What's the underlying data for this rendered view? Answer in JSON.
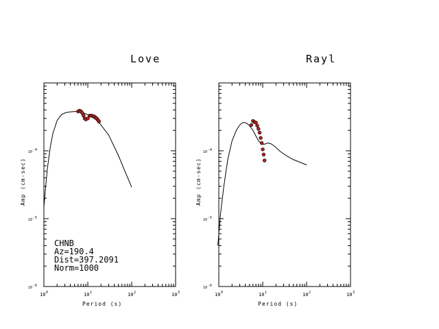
{
  "chart_data": [
    {
      "type": "line",
      "title": "Love",
      "xlabel": "Period (s)",
      "ylabel": "Amp (cm-sec)",
      "xscale": "log",
      "yscale": "log",
      "xlim": [
        1,
        1000
      ],
      "ylim": [
        1e-06,
        0.001
      ],
      "x_tick_labels": [
        {
          "base": "10",
          "exp": "0",
          "value": 1
        },
        {
          "base": "10",
          "exp": "1",
          "value": 10
        },
        {
          "base": "10",
          "exp": "2",
          "value": 100
        },
        {
          "base": "10",
          "exp": "3",
          "value": 1000
        }
      ],
      "y_tick_labels": [
        {
          "base": "10",
          "exp": "-4",
          "value": 0.0001
        },
        {
          "base": "10",
          "exp": "-5",
          "value": 1e-05
        },
        {
          "base": "10",
          "exp": "-6",
          "value": 1e-06
        }
      ],
      "series": [
        {
          "kind": "line",
          "x": [
            1.0,
            1.1,
            1.2,
            1.4,
            1.6,
            2.0,
            2.5,
            3.0,
            3.5,
            4.0,
            5.0,
            6.0,
            7.0,
            8.0,
            10,
            12,
            15,
            20,
            30,
            50,
            70,
            100
          ],
          "y": [
            1.5e-05,
            3e-05,
            5.5e-05,
            0.000115,
            0.00018,
            0.00028,
            0.00034,
            0.00036,
            0.00037,
            0.000375,
            0.00038,
            0.00038,
            0.000375,
            0.00036,
            0.00034,
            0.00032,
            0.00029,
            0.00024,
            0.00017,
            8.5e-05,
            5e-05,
            2.9e-05
          ]
        },
        {
          "kind": "scatter",
          "x": [
            6.0,
            6.5,
            7.0,
            7.5,
            8.0,
            8.5,
            9.0,
            10.0,
            11.0,
            12.0,
            13.0,
            14.0,
            15.0,
            16.0,
            17.0,
            18.0
          ],
          "y": [
            0.00038,
            0.00039,
            0.00038,
            0.00036,
            0.00033,
            0.0003,
            0.00029,
            0.0003,
            0.00033,
            0.00033,
            0.000325,
            0.00032,
            0.00031,
            0.0003,
            0.000285,
            0.00027
          ]
        }
      ],
      "annotations": [
        "CHNB",
        "Az=190.4",
        "Dist=397.2091",
        "Norm=1000"
      ]
    },
    {
      "type": "line",
      "title": "Rayl",
      "xlabel": "Period (s)",
      "ylabel": "Amp (cm-sec)",
      "xscale": "log",
      "yscale": "log",
      "xlim": [
        1,
        1000
      ],
      "ylim": [
        1e-06,
        0.001
      ],
      "x_tick_labels": [
        {
          "base": "10",
          "exp": "0",
          "value": 1
        },
        {
          "base": "10",
          "exp": "1",
          "value": 10
        },
        {
          "base": "10",
          "exp": "2",
          "value": 100
        },
        {
          "base": "10",
          "exp": "3",
          "value": 1000
        }
      ],
      "y_tick_labels": [
        {
          "base": "10",
          "exp": "-4",
          "value": 0.0001
        },
        {
          "base": "10",
          "exp": "-5",
          "value": 1e-05
        },
        {
          "base": "10",
          "exp": "-6",
          "value": 1e-06
        }
      ],
      "series": [
        {
          "kind": "line",
          "x": [
            0.95,
            1.0,
            1.1,
            1.3,
            1.6,
            2.0,
            2.5,
            3.0,
            3.5,
            4.0,
            4.5,
            5.0,
            6.0,
            7.0,
            8.0,
            9.0,
            10,
            11,
            12,
            13,
            15,
            17,
            20,
            25,
            30,
            40,
            50,
            70,
            100
          ],
          "y": [
            4e-06,
            6e-06,
            1.2e-05,
            3e-05,
            7.5e-05,
            0.00014,
            0.0002,
            0.00024,
            0.00026,
            0.00026,
            0.00025,
            0.000235,
            0.0002,
            0.000165,
            0.00014,
            0.00013,
            0.000125,
            0.000125,
            0.000128,
            0.00013,
            0.000128,
            0.000122,
            0.000112,
            9.8e-05,
            9e-05,
            8e-05,
            7.4e-05,
            6.8e-05,
            6.2e-05
          ]
        },
        {
          "kind": "scatter",
          "x": [
            5.5,
            6.0,
            6.5,
            7.0,
            7.5,
            8.0,
            8.5,
            9.0,
            9.5,
            10.0,
            10.5,
            11.0
          ],
          "y": [
            0.00024,
            0.000275,
            0.000265,
            0.00026,
            0.000235,
            0.00021,
            0.000185,
            0.000155,
            0.00013,
            0.000105,
            8.8e-05,
            7.2e-05
          ]
        }
      ]
    }
  ]
}
